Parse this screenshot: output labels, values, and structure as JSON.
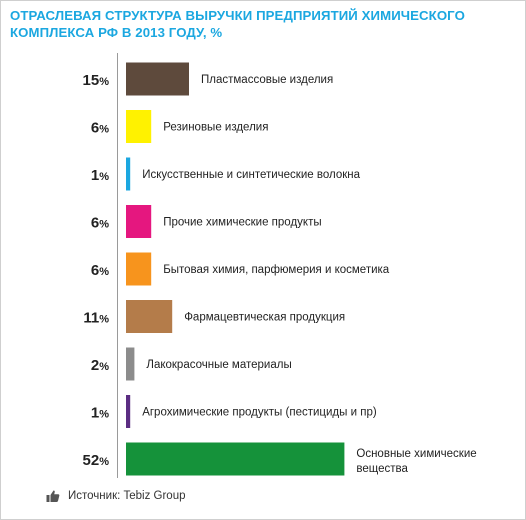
{
  "title": "ОТРАСЛЕВАЯ СТРУКТУРА ВЫРУЧКИ ПРЕДПРИЯТИЙ ХИМИЧЕСКОГО КОМПЛЕКСА РФ В 2013 ГОДУ, %",
  "source": "Источник: Tebiz Group",
  "chart_data": {
    "type": "bar",
    "orientation": "horizontal",
    "title": "ОТРАСЛЕВАЯ СТРУКТУРА ВЫРУЧКИ ПРЕДПРИЯТИЙ ХИМИЧЕСКОГО КОМПЛЕКСА РФ В 2013 ГОДУ, %",
    "unit": "%",
    "categories": [
      "Пластмассовые изделия",
      "Резиновые изделия",
      "Искусственные и синтетические волокна",
      "Прочие химические продукты",
      "Бытовая химия, парфюмерия и косметика",
      "Фармацевтическая продукция",
      "Лакокрасочные материалы",
      "Агрохимические продукты (пестициды и пр)",
      "Основные химические вещества"
    ],
    "values": [
      15,
      6,
      1,
      6,
      6,
      11,
      2,
      1,
      52
    ],
    "colors": [
      "#5e4a3c",
      "#fff200",
      "#1ba7e0",
      "#e5177f",
      "#f7941d",
      "#b47c4a",
      "#8c8c8c",
      "#5b2d82",
      "#15923a"
    ],
    "xlim": [
      0,
      52
    ],
    "grid": false,
    "legend": "none"
  }
}
